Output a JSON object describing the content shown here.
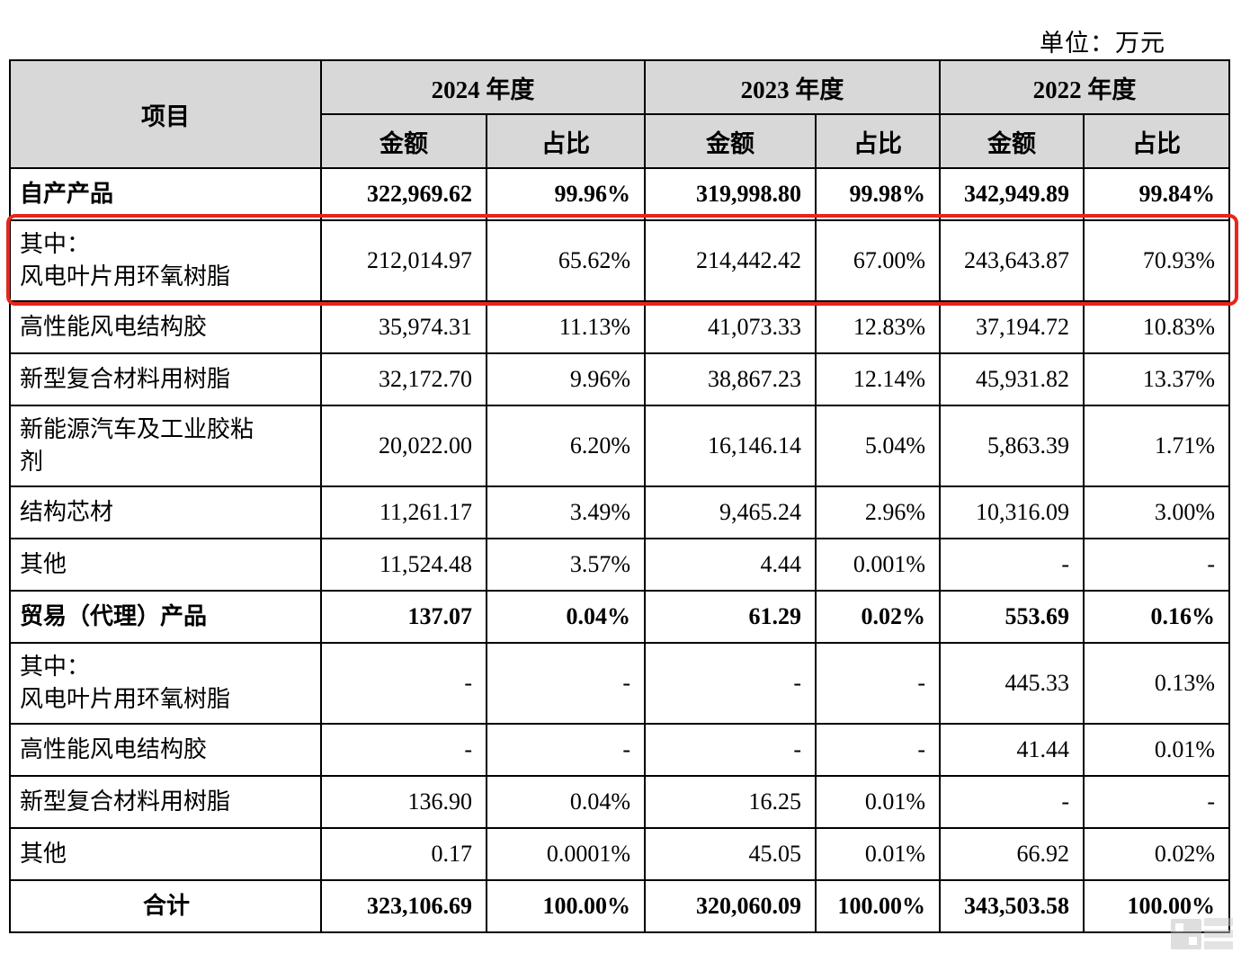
{
  "unit_label": "单位：万元",
  "colors": {
    "accent_red": "#e8251d",
    "header_bg": "#d8d8d8",
    "border": "#000000"
  },
  "icons": {
    "watermark": "media-watermark-logo"
  },
  "table": {
    "item_header": "项目",
    "year_groups": [
      {
        "label": "2024 年度",
        "amount_label": "金额",
        "ratio_label": "占比"
      },
      {
        "label": "2023 年度",
        "amount_label": "金额",
        "ratio_label": "占比"
      },
      {
        "label": "2022 年度",
        "amount_label": "金额",
        "ratio_label": "占比"
      }
    ],
    "rows": [
      {
        "label": "自产产品",
        "bold": true,
        "values": [
          "322,969.62",
          "99.96%",
          "319,998.80",
          "99.98%",
          "342,949.89",
          "99.84%"
        ]
      },
      {
        "label": "其中：\n风电叶片用环氧树脂",
        "highlighted": true,
        "values": [
          "212,014.97",
          "65.62%",
          "214,442.42",
          "67.00%",
          "243,643.87",
          "70.93%"
        ]
      },
      {
        "label": "高性能风电结构胶",
        "values": [
          "35,974.31",
          "11.13%",
          "41,073.33",
          "12.83%",
          "37,194.72",
          "10.83%"
        ]
      },
      {
        "label": "新型复合材料用树脂",
        "values": [
          "32,172.70",
          "9.96%",
          "38,867.23",
          "12.14%",
          "45,931.82",
          "13.37%"
        ]
      },
      {
        "label": "新能源汽车及工业胶粘\n剂",
        "values": [
          "20,022.00",
          "6.20%",
          "16,146.14",
          "5.04%",
          "5,863.39",
          "1.71%"
        ]
      },
      {
        "label": "结构芯材",
        "values": [
          "11,261.17",
          "3.49%",
          "9,465.24",
          "2.96%",
          "10,316.09",
          "3.00%"
        ]
      },
      {
        "label": "其他",
        "values": [
          "11,524.48",
          "3.57%",
          "4.44",
          "0.001%",
          "-",
          "-"
        ]
      },
      {
        "label": "贸易（代理）产品",
        "bold": true,
        "values": [
          "137.07",
          "0.04%",
          "61.29",
          "0.02%",
          "553.69",
          "0.16%"
        ]
      },
      {
        "label": "其中：\n风电叶片用环氧树脂",
        "values": [
          "-",
          "-",
          "-",
          "-",
          "445.33",
          "0.13%"
        ]
      },
      {
        "label": "高性能风电结构胶",
        "values": [
          "-",
          "-",
          "-",
          "-",
          "41.44",
          "0.01%"
        ]
      },
      {
        "label": "新型复合材料用树脂",
        "values": [
          "136.90",
          "0.04%",
          "16.25",
          "0.01%",
          "-",
          "-"
        ]
      },
      {
        "label": "其他",
        "values": [
          "0.17",
          "0.0001%",
          "45.05",
          "0.01%",
          "66.92",
          "0.02%"
        ]
      },
      {
        "label": "合计",
        "bold": true,
        "total": true,
        "values": [
          "323,106.69",
          "100.00%",
          "320,060.09",
          "100.00%",
          "343,503.58",
          "100.00%"
        ]
      }
    ]
  }
}
